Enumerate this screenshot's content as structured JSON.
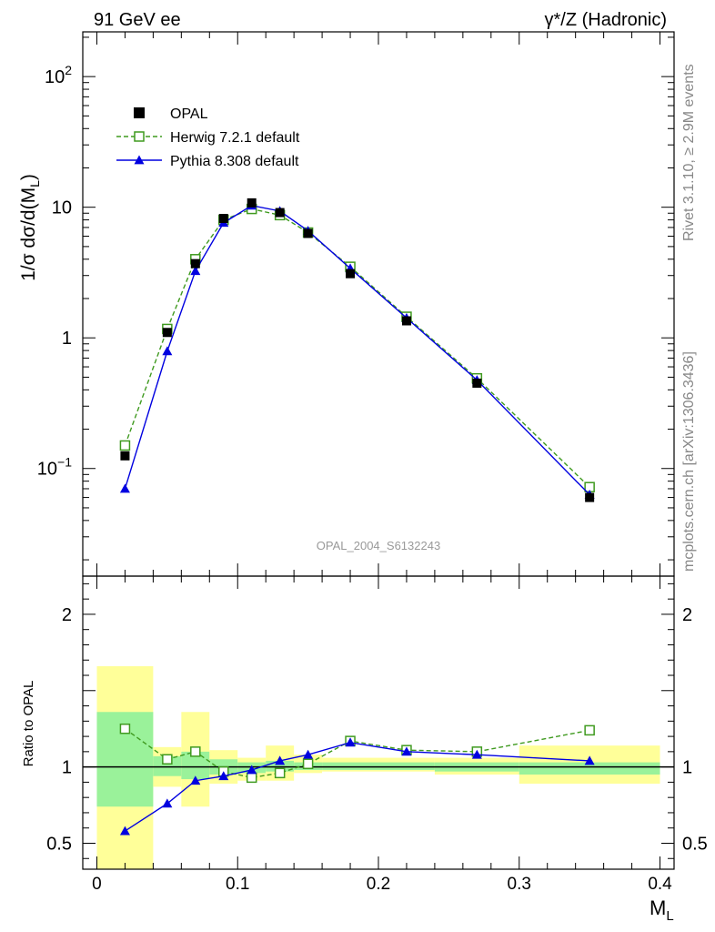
{
  "header": {
    "left": "91 GeV ee",
    "right": "γ*/Z (Hadronic)"
  },
  "side_labels": {
    "rivet": "Rivet 3.1.10, ≥ 2.9M events",
    "mcplots": "mcplots.cern.ch [arXiv:1306.3436]"
  },
  "watermark": "OPAL_2004_S6132243",
  "colors": {
    "data": "#000000",
    "herwig": "#3f9a1f",
    "pythia": "#0000e0",
    "band_inner": "#9af29a",
    "band_outer": "#ffff99"
  },
  "chart_data": [
    {
      "type": "line",
      "panel": "main",
      "ylabel": "1/σ dσ/d(M_L)",
      "yscale": "log",
      "ylim": [
        0.015,
        220
      ],
      "xlim": [
        -0.01,
        0.41
      ],
      "ytick_labels": [
        "10^-1",
        "1",
        "10",
        "10^2"
      ],
      "legend_position": "top-left",
      "series": [
        {
          "name": "OPAL",
          "x": [
            0.02,
            0.05,
            0.07,
            0.09,
            0.11,
            0.13,
            0.15,
            0.18,
            0.22,
            0.27,
            0.35
          ],
          "values": [
            0.125,
            1.1,
            3.7,
            8.2,
            10.8,
            9.1,
            6.3,
            3.1,
            1.35,
            0.45,
            0.06
          ]
        },
        {
          "name": "Herwig 7.2.1 default",
          "x": [
            0.02,
            0.05,
            0.07,
            0.09,
            0.11,
            0.13,
            0.15,
            0.18,
            0.22,
            0.27,
            0.35
          ],
          "values": [
            0.15,
            1.17,
            4.0,
            8.0,
            9.7,
            8.7,
            6.4,
            3.5,
            1.45,
            0.49,
            0.072
          ]
        },
        {
          "name": "Pythia 8.308 default",
          "x": [
            0.02,
            0.05,
            0.07,
            0.09,
            0.11,
            0.13,
            0.15,
            0.18,
            0.22,
            0.27,
            0.35
          ],
          "values": [
            0.07,
            0.79,
            3.25,
            7.6,
            10.3,
            9.35,
            6.6,
            3.4,
            1.42,
            0.475,
            0.063
          ]
        }
      ]
    },
    {
      "type": "line",
      "panel": "ratio",
      "ylabel": "Ratio to OPAL",
      "xlabel": "M_L",
      "ylim": [
        0.33,
        2.25
      ],
      "xlim": [
        -0.01,
        0.41
      ],
      "xtick_labels": [
        "0",
        "0.1",
        "0.2",
        "0.3",
        "0.4"
      ],
      "ytick_labels": [
        "0.5",
        "1",
        "2"
      ],
      "series": [
        {
          "name": "Herwig 7.2.1 default",
          "x": [
            0.02,
            0.05,
            0.07,
            0.09,
            0.11,
            0.13,
            0.15,
            0.18,
            0.22,
            0.27,
            0.35
          ],
          "values": [
            1.25,
            1.05,
            1.1,
            0.97,
            0.93,
            0.96,
            1.02,
            1.17,
            1.11,
            1.1,
            1.24
          ]
        },
        {
          "name": "Pythia 8.308 default",
          "x": [
            0.02,
            0.05,
            0.07,
            0.09,
            0.11,
            0.13,
            0.15,
            0.18,
            0.22,
            0.27,
            0.35
          ],
          "values": [
            0.58,
            0.76,
            0.91,
            0.94,
            0.98,
            1.04,
            1.08,
            1.16,
            1.1,
            1.08,
            1.04
          ]
        }
      ],
      "uncertainty_bands": {
        "bin_edges": [
          0.0,
          0.04,
          0.06,
          0.08,
          0.1,
          0.12,
          0.14,
          0.16,
          0.2,
          0.24,
          0.3,
          0.4
        ],
        "inner": [
          [
            0.74,
            1.36
          ],
          [
            0.94,
            1.07
          ],
          [
            0.92,
            1.1
          ],
          [
            0.95,
            1.05
          ],
          [
            0.96,
            1.03
          ],
          [
            0.97,
            1.04
          ],
          [
            0.98,
            1.03
          ],
          [
            0.98,
            1.03
          ],
          [
            0.98,
            1.03
          ],
          [
            0.97,
            1.03
          ],
          [
            0.95,
            1.03
          ]
        ],
        "outer": [
          [
            0.33,
            1.66
          ],
          [
            0.87,
            1.13
          ],
          [
            0.74,
            1.36
          ],
          [
            0.89,
            1.11
          ],
          [
            0.91,
            1.06
          ],
          [
            0.91,
            1.14
          ],
          [
            0.96,
            1.08
          ],
          [
            0.97,
            1.06
          ],
          [
            0.97,
            1.06
          ],
          [
            0.95,
            1.06
          ],
          [
            0.89,
            1.14
          ]
        ]
      }
    }
  ]
}
